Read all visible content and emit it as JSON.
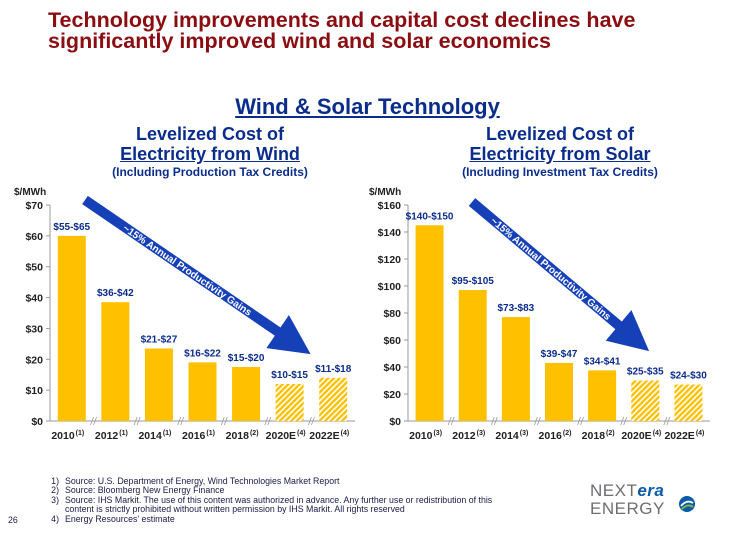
{
  "headline": {
    "line1": "Technology improvements and capital cost declines have",
    "line2": "significantly improved wind and solar economics"
  },
  "section_title": "Wind & Solar Technology",
  "wind": {
    "title_line1": "Levelized Cost of",
    "title_line2": "Electricity from Wind",
    "subtitle": "(Including Production Tax Credits)"
  },
  "solar": {
    "title_line1": "Levelized Cost of",
    "title_line2": "Electricity from Solar",
    "subtitle": "(Including Investment Tax Credits)"
  },
  "colors": {
    "bar": "#ffc000",
    "estimate": "#ffc000",
    "arrow": "#1540b8",
    "title": "#0a2d8c",
    "headline": "#8b0d12",
    "axis": "#9a9a9a"
  },
  "chart_data": [
    {
      "type": "bar",
      "title": "Levelized Cost of Electricity from Wind",
      "ylabel": "$/MWh",
      "ylim": [
        0,
        70
      ],
      "yticks": [
        0,
        10,
        20,
        30,
        40,
        50,
        60,
        70
      ],
      "ytick_labels": [
        "$0",
        "$10",
        "$20",
        "$30",
        "$40",
        "$50",
        "$60",
        "$70"
      ],
      "categories": [
        "2010",
        "2012",
        "2014",
        "2016",
        "2018",
        "2020E",
        "2022E"
      ],
      "category_notes": [
        "(1)",
        "(1)",
        "(1)",
        "(1)",
        "(2)",
        "(4)",
        "(4)"
      ],
      "values": [
        60,
        38.5,
        23.5,
        19,
        17.5,
        12,
        14
      ],
      "data_labels": [
        "$55-$65",
        "$36-$42",
        "$21-$27",
        "$16-$22",
        "$15-$20",
        "$10-$15",
        "$11-$18"
      ],
      "estimate": [
        false,
        false,
        false,
        false,
        false,
        true,
        true
      ],
      "annotation": "~15% Annual Productivity Gains"
    },
    {
      "type": "bar",
      "title": "Levelized Cost of Electricity from Solar",
      "ylabel": "$/MWh",
      "ylim": [
        0,
        160
      ],
      "yticks": [
        0,
        20,
        40,
        60,
        80,
        100,
        120,
        140,
        160
      ],
      "ytick_labels": [
        "$0",
        "$20",
        "$40",
        "$60",
        "$80",
        "$100",
        "$120",
        "$140",
        "$160"
      ],
      "categories": [
        "2010",
        "2012",
        "2014",
        "2016",
        "2018",
        "2020E",
        "2022E"
      ],
      "category_notes": [
        "(3)",
        "(3)",
        "(3)",
        "(2)",
        "(2)",
        "(4)",
        "(4)"
      ],
      "values": [
        145,
        97,
        77,
        43,
        37.5,
        30,
        27
      ],
      "data_labels": [
        "$140-$150",
        "$95-$105",
        "$73-$83",
        "$39-$47",
        "$34-$41",
        "$25-$35",
        "$24-$30"
      ],
      "estimate": [
        false,
        false,
        false,
        false,
        false,
        true,
        true
      ],
      "annotation": "~15% Annual Productivity Gains"
    }
  ],
  "footnotes": [
    {
      "num": "1)",
      "text": "Source: U.S. Department of Energy, Wind Technologies Market Report"
    },
    {
      "num": "2)",
      "text": "Source: Bloomberg New Energy Finance"
    },
    {
      "num": "3)",
      "text": "Source: IHS Markit. The use of this content was authorized in advance. Any further use or redistribution of this"
    },
    {
      "num": "",
      "text": "content is strictly prohibited without written permission by IHS Markit. All rights reserved"
    },
    {
      "num": "4)",
      "text": "Energy Resources' estimate"
    }
  ],
  "page_number": "26",
  "logo": {
    "part1": "NEXT",
    "part2": "era",
    "part3": "ENERGY"
  }
}
